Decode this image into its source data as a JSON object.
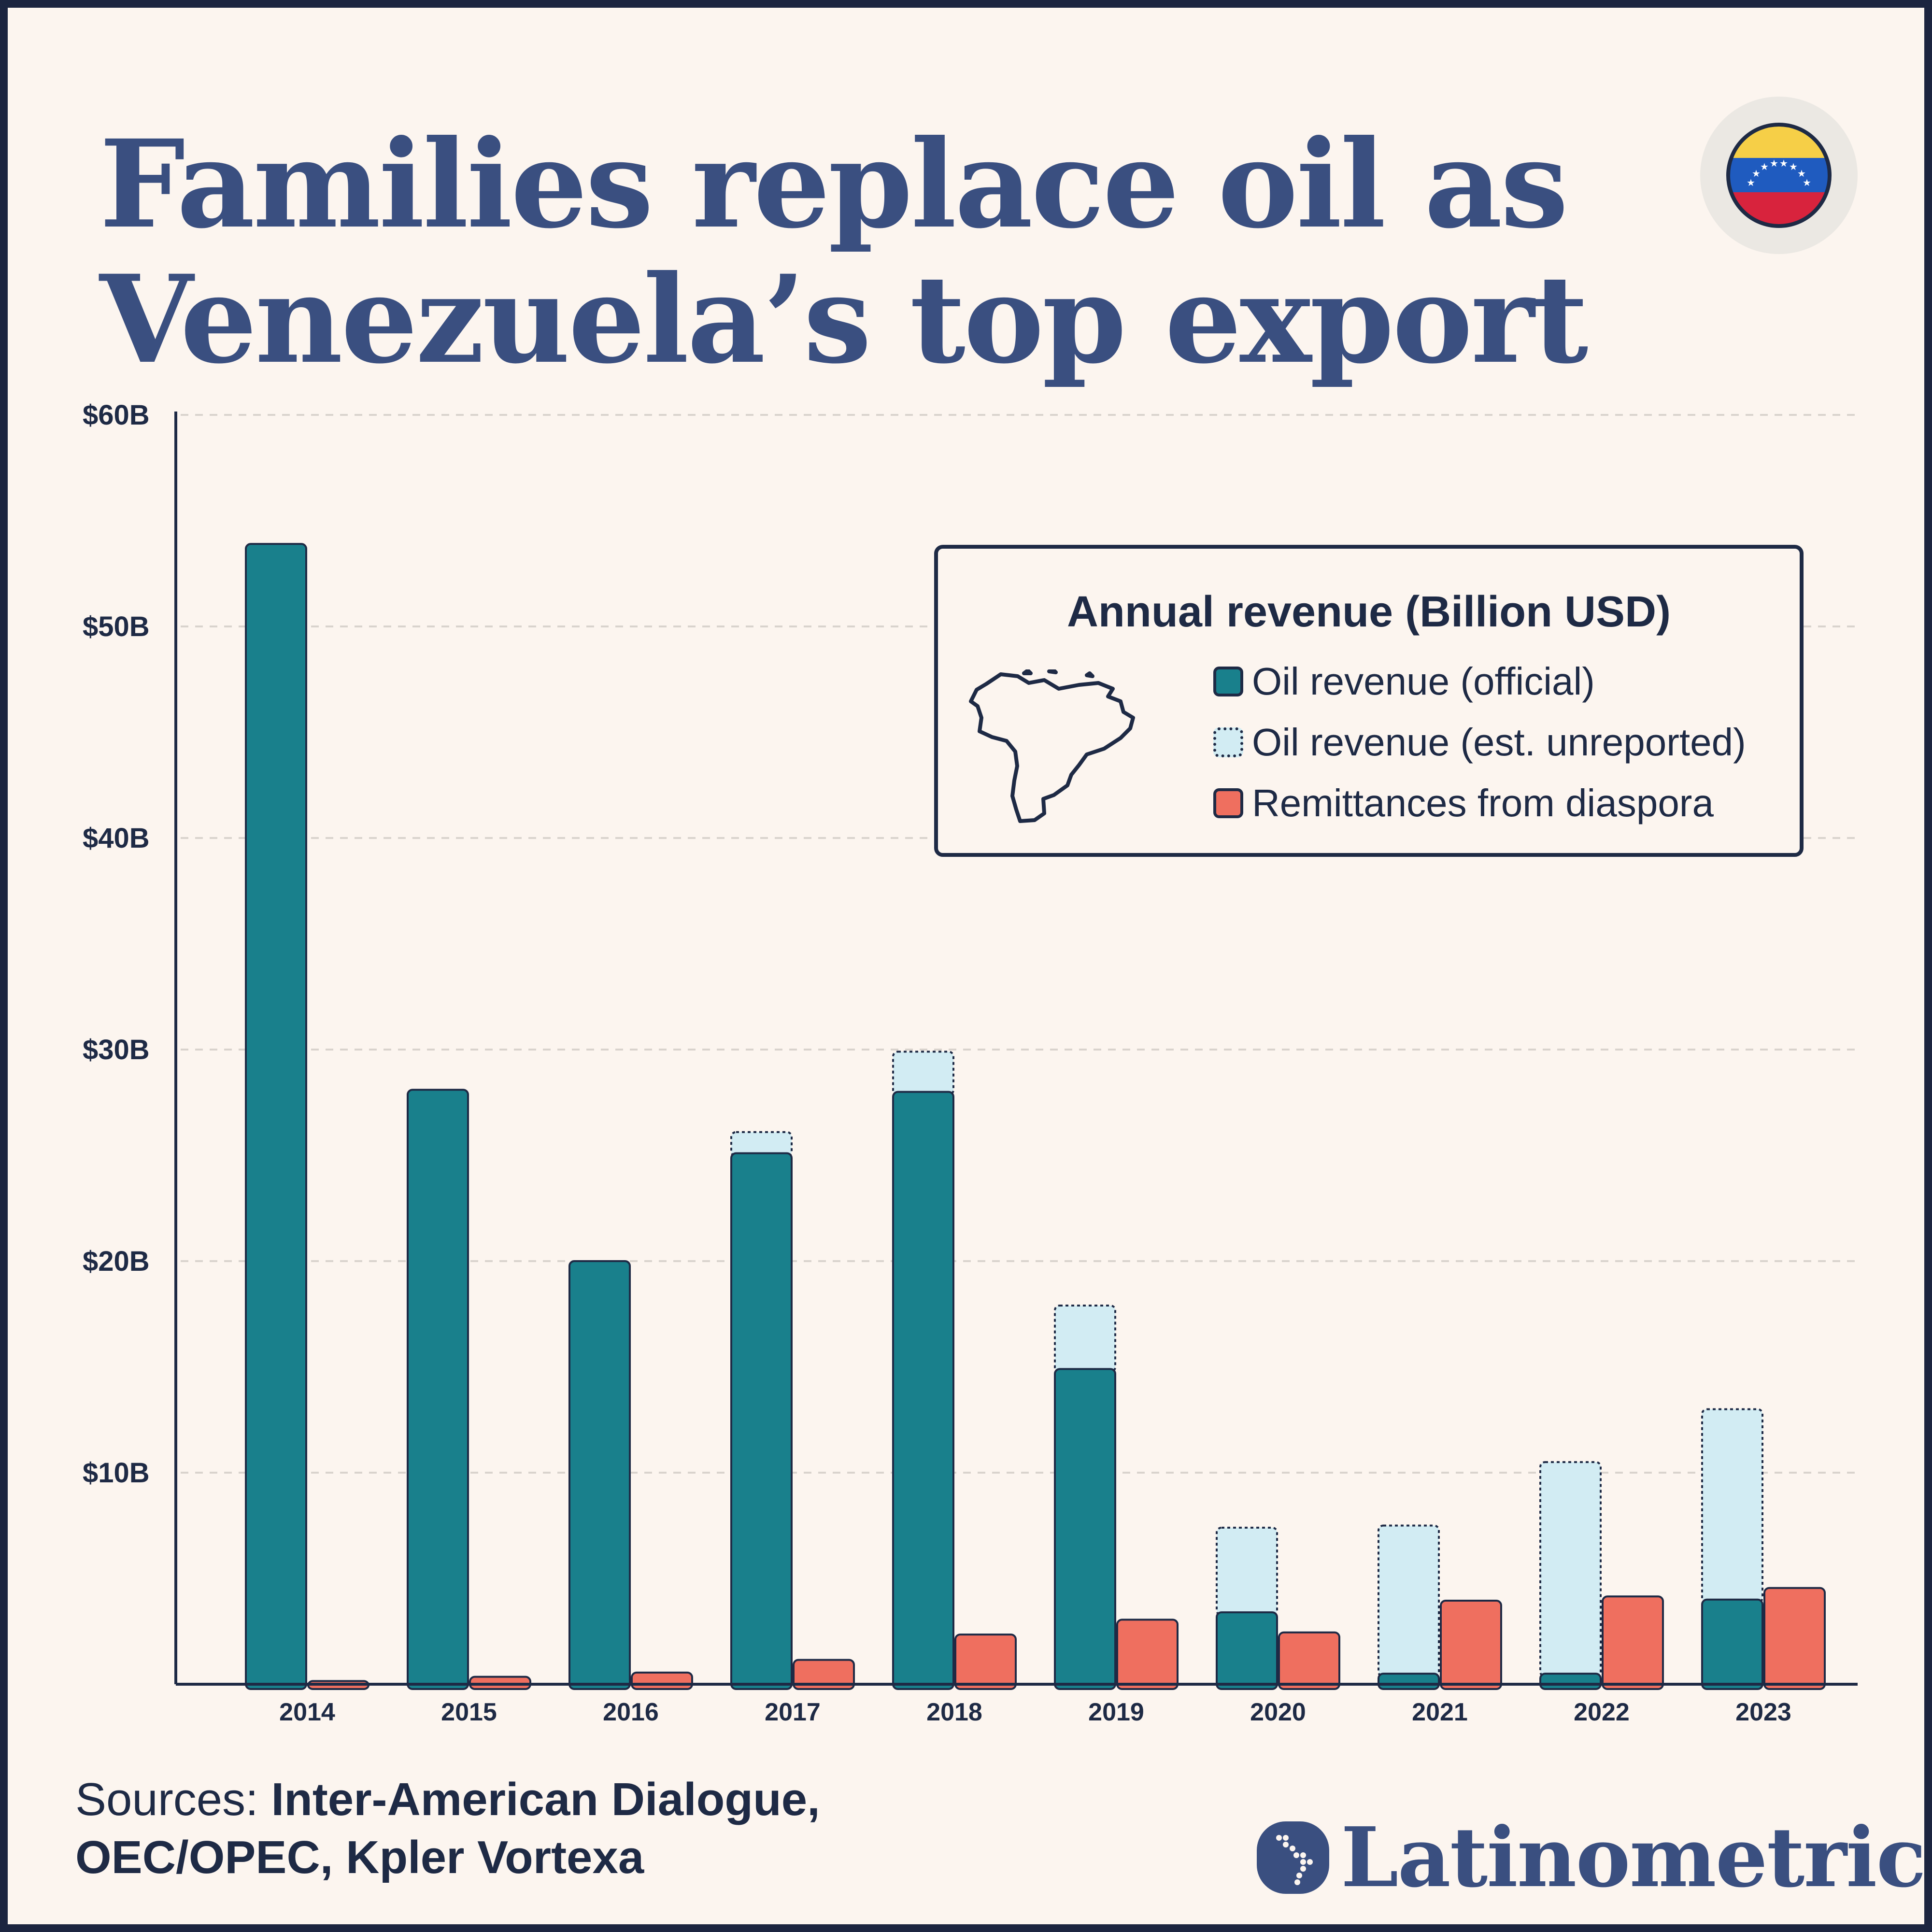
{
  "title": {
    "line1": "Families replace oil as",
    "line2": "Venezuela’s top export"
  },
  "legend": {
    "title": "Annual revenue (Billion USD)",
    "items": [
      "Oil revenue (official)",
      "Oil revenue (est. unreported)",
      "Remittances from diaspora"
    ]
  },
  "sources": {
    "prefix": "Sources: ",
    "line1": "Inter-American Dialogue,",
    "line2": "OEC/OPEC, Kpler Vortexa"
  },
  "brand": "Latinometrics",
  "icons": {
    "flag": "venezuela-flag-icon",
    "map": "venezuela-map-icon",
    "logo": "latin-america-dots-logo-icon"
  },
  "colors": {
    "oil_official": "#19808c",
    "oil_unreported": "#d2ecf3",
    "remittances": "#ef6f5f",
    "text": "#1e2a45",
    "title": "#3a4f80",
    "background": "#fcf5ef"
  },
  "chart_data": {
    "type": "bar",
    "stacked": "oil official + oil unreported stacked; remittances as separate bar",
    "categories": [
      "2014",
      "2015",
      "2016",
      "2017",
      "2018",
      "2019",
      "2020",
      "2021",
      "2022",
      "2023"
    ],
    "series": [
      {
        "name": "Oil revenue (official)",
        "values": [
          53.9,
          28.1,
          20.0,
          25.1,
          28.0,
          14.9,
          3.4,
          0.5,
          0.5,
          4.0
        ]
      },
      {
        "name": "Oil revenue (est. unreported)",
        "values": [
          0,
          0,
          0,
          1.0,
          1.9,
          3.0,
          4.0,
          7.0,
          10.0,
          9.0
        ]
      },
      {
        "name": "Remittances from diaspora",
        "values": [
          0.15,
          0.35,
          0.55,
          1.15,
          2.35,
          3.05,
          2.45,
          3.95,
          4.15,
          4.55
        ]
      }
    ],
    "yticks": [
      "$10B",
      "$20B",
      "$30B",
      "$40B",
      "$50B",
      "$60B"
    ],
    "ylim": [
      0,
      60
    ],
    "grid": true,
    "legend_position": "top-right"
  }
}
